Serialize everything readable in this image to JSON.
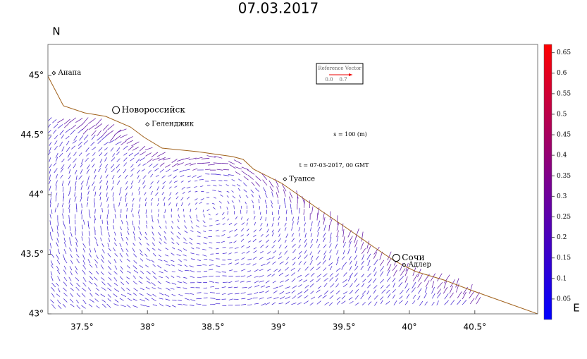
{
  "map": {
    "title": "07.03.2017",
    "north_label": "N",
    "east_label": "E",
    "xlim": [
      37.24,
      40.98
    ],
    "ylim": [
      43,
      45.26
    ],
    "lon_ticks": [
      {
        "value": 37.5,
        "label": "37.5°"
      },
      {
        "value": 38,
        "label": "38°"
      },
      {
        "value": 38.5,
        "label": "38.5°"
      },
      {
        "value": 39,
        "label": "39°"
      },
      {
        "value": 39.5,
        "label": "39.5°"
      },
      {
        "value": 40,
        "label": "40°"
      },
      {
        "value": 40.5,
        "label": "40.5°"
      }
    ],
    "lat_ticks": [
      {
        "value": 43,
        "label": "43°"
      },
      {
        "value": 43.5,
        "label": "43.5°"
      },
      {
        "value": 44,
        "label": "44°"
      },
      {
        "value": 44.5,
        "label": "44.5°"
      },
      {
        "value": 45,
        "label": "45°"
      }
    ],
    "places": [
      {
        "name": "Анапа",
        "lon": 37.285,
        "lat": 45.02,
        "big": false
      },
      {
        "name": "Новороссийск",
        "lon": 37.76,
        "lat": 44.71,
        "big": true
      },
      {
        "name": "Геленджик",
        "lon": 38.0,
        "lat": 44.59,
        "big": false
      },
      {
        "name": "Туапсе",
        "lon": 39.05,
        "lat": 44.13,
        "big": false
      },
      {
        "name": "Сочи",
        "lon": 39.9,
        "lat": 43.47,
        "big": true
      },
      {
        "name": "Адлер",
        "lon": 39.96,
        "lat": 43.41,
        "big": false
      }
    ],
    "depth_note": "s = 100 (m)",
    "time_note": "t = 07-03-2017, 00 GMT",
    "reference": {
      "title": "Reference Vector",
      "low": "0.0",
      "high": "0.7"
    },
    "colorbar": {
      "lim": [
        0,
        0.67
      ],
      "ticks": [
        0.05,
        0.1,
        0.15,
        0.2,
        0.25,
        0.3,
        0.35,
        0.4,
        0.45,
        0.5,
        0.55,
        0.6,
        0.65
      ]
    }
  }
}
